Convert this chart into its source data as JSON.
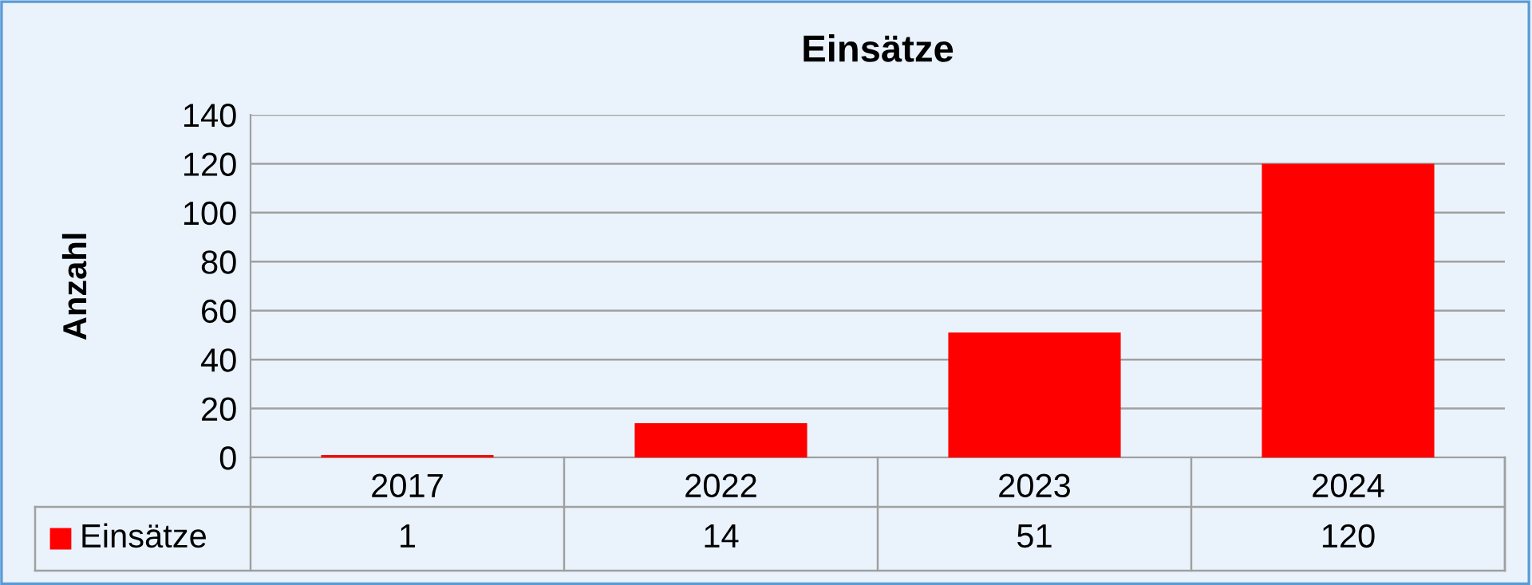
{
  "chart_data": {
    "type": "bar",
    "title": "Einsätze",
    "ylabel": "Anzahl",
    "categories": [
      "2017",
      "2022",
      "2023",
      "2024"
    ],
    "series": [
      {
        "name": "Einsätze",
        "color": "#ff0000",
        "values": [
          1,
          14,
          51,
          120
        ]
      }
    ],
    "ylim": [
      0,
      140
    ],
    "yticks": [
      0,
      20,
      40,
      60,
      80,
      100,
      120,
      140
    ],
    "grid": "y",
    "data_labels": true,
    "legend": "bottom left"
  }
}
